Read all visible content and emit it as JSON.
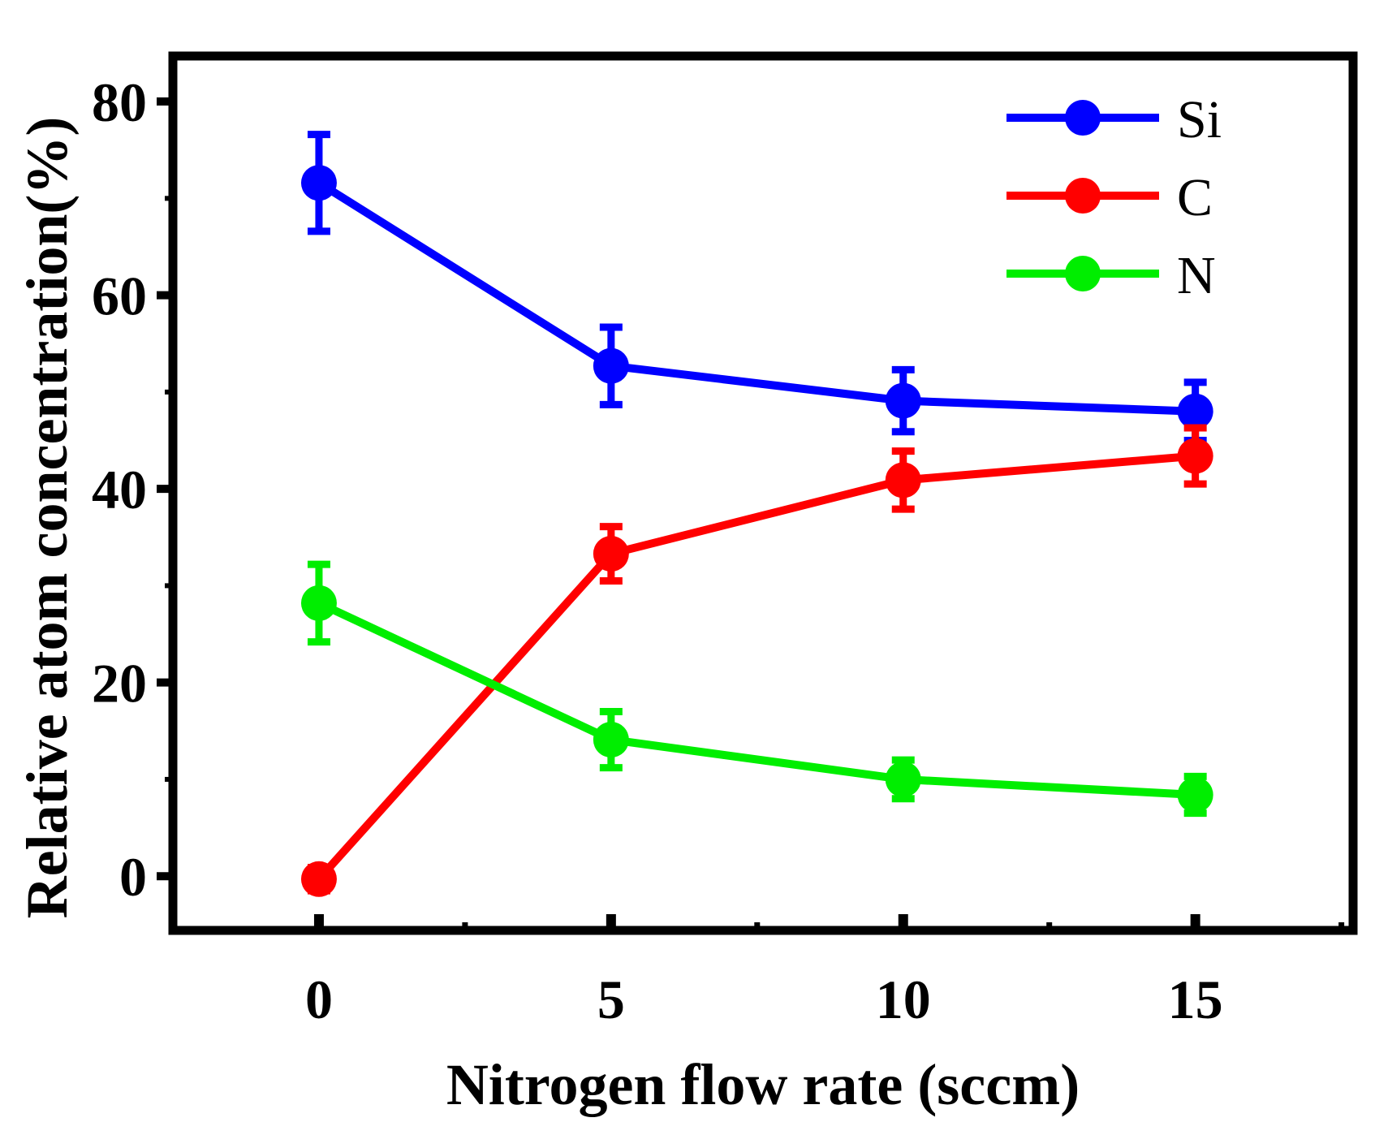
{
  "chart_data": {
    "type": "line",
    "title": "",
    "xlabel": "Nitrogen flow rate (sccm)",
    "ylabel": "Relative atom concentration(%)",
    "x": [
      0,
      5,
      10,
      15
    ],
    "xlim": [
      -2.5,
      17.7
    ],
    "ylim": [
      -5.6,
      84.7
    ],
    "xticks": [
      0,
      5,
      10,
      15
    ],
    "xtick_labels": [
      "0",
      "5",
      "10",
      "15"
    ],
    "yticks": [
      0,
      20,
      40,
      60,
      80
    ],
    "ytick_labels": [
      "0",
      "20",
      "40",
      "60",
      "80"
    ],
    "grid": false,
    "legend_position": "top-right",
    "series": [
      {
        "name": "Si",
        "color": "#0000ff",
        "values": [
          71.6,
          52.7,
          49.1,
          48.0
        ],
        "errors": [
          5.0,
          4.0,
          3.2,
          3.0
        ]
      },
      {
        "name": "C",
        "color": "#ff0000",
        "values": [
          -0.3,
          33.3,
          40.9,
          43.4
        ],
        "errors": [
          1.2,
          2.8,
          3.0,
          2.9
        ]
      },
      {
        "name": "N",
        "color": "#00ee00",
        "values": [
          28.2,
          14.1,
          10.0,
          8.4
        ],
        "errors": [
          4.0,
          2.9,
          2.0,
          1.9
        ]
      }
    ]
  }
}
